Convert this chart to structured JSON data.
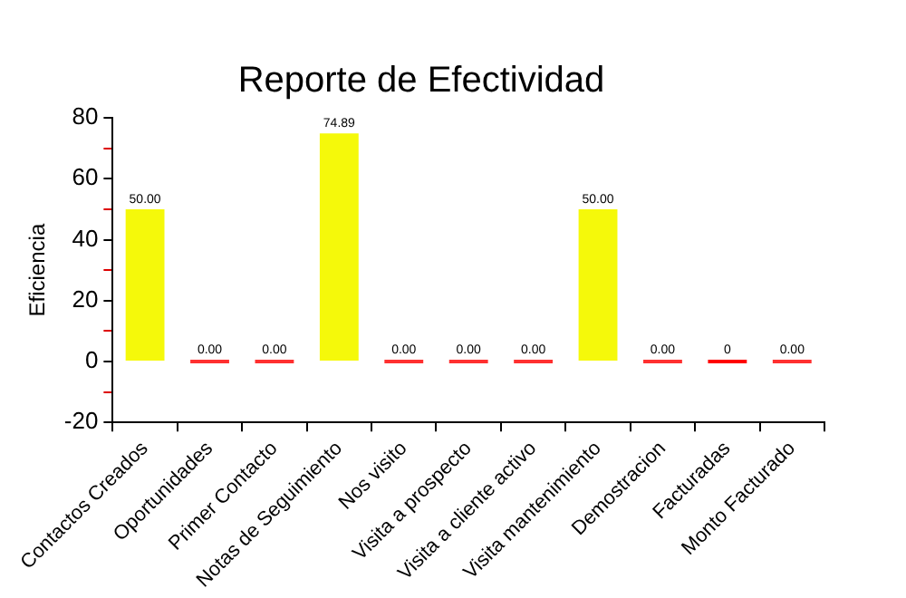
{
  "chart_data": {
    "type": "bar",
    "title": "Reporte de Efectividad",
    "ylabel": "Eficiencia",
    "categories": [
      "Contactos Creados",
      "Oportunidades",
      "Primer Contacto",
      "Notas de Seguimiento",
      "Nos visito",
      "Visita a prospecto",
      "Visita a cliente activo",
      "Visita mantenimiento",
      "Demostracion",
      "Facturadas",
      "Monto Facturado"
    ],
    "values": [
      50,
      0,
      0,
      74.89,
      0,
      0,
      0,
      50,
      0,
      0,
      0
    ],
    "value_labels": [
      "50.00",
      "0.00",
      "0.00",
      "74.89",
      "0.00",
      "0.00",
      "0.00",
      "50.00",
      "0.00",
      "0",
      "0.00"
    ],
    "colors": [
      "#f5f90a",
      "#ff3030",
      "#ff3030",
      "#f5f90a",
      "#ff3030",
      "#ff3030",
      "#ff3030",
      "#f5f90a",
      "#ff3030",
      "#ff0000",
      "#ff3030"
    ],
    "ylim": [
      -20,
      80
    ],
    "yticks": [
      -20,
      {
        "value": -10,
        "label": null
      },
      0,
      {
        "value": 10,
        "label": null
      },
      20,
      {
        "value": 30,
        "label": null
      },
      40,
      {
        "value": 50,
        "label": null
      },
      60,
      {
        "value": 70,
        "label": null
      },
      80
    ],
    "grid": false,
    "legend": false
  }
}
